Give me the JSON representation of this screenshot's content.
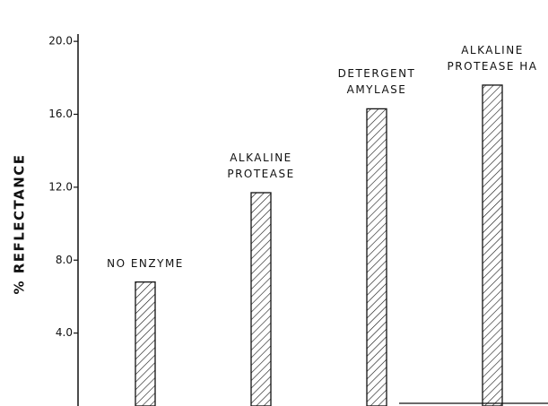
{
  "chart_data": {
    "type": "bar",
    "y_label": "% REFLECTANCE",
    "categories": [
      "NO ENZYME",
      "ALKALINE\nPROTEASE",
      "DETERGENT\nAMYLASE",
      "ALKALINE\nPROTEASE HA"
    ],
    "values": [
      6.8,
      11.7,
      16.3,
      17.6
    ],
    "color": "#111111",
    "ylim": [
      0,
      20.4
    ],
    "yticks": [
      {
        "value": 4,
        "label": "4.0"
      },
      {
        "value": 8,
        "label": "8.0"
      },
      {
        "value": 12,
        "label": "12.0"
      },
      {
        "value": 16,
        "label": "16.0"
      },
      {
        "value": 20,
        "label": "20.0"
      }
    ]
  }
}
